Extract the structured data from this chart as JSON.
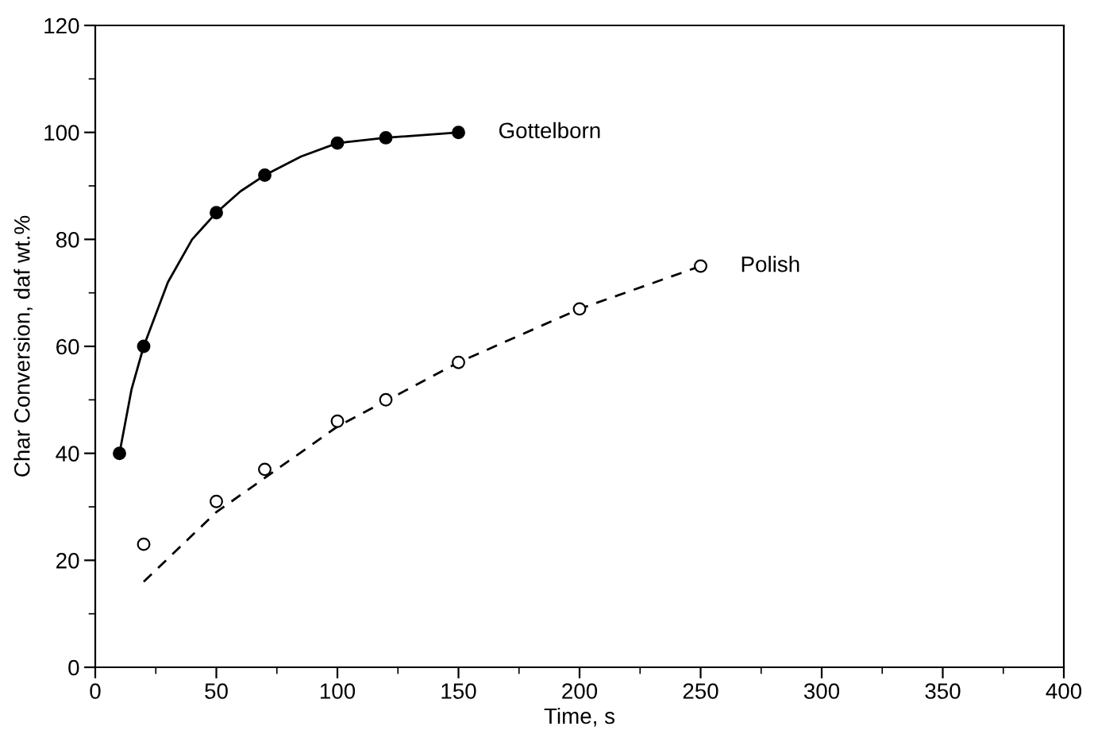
{
  "chart_data": {
    "type": "scatter",
    "xlabel": "Time, s",
    "ylabel": "Char Conversion, daf wt.%",
    "xlim": [
      0,
      400
    ],
    "xticks": [
      0,
      50,
      100,
      150,
      200,
      250,
      300,
      350,
      400
    ],
    "ylim": [
      0,
      120
    ],
    "yticks": [
      0,
      20,
      40,
      60,
      80,
      100,
      120
    ],
    "grid": false,
    "legend": false,
    "series": [
      {
        "type": "line",
        "color": "#000000",
        "line_style": "solid",
        "marker": "none",
        "x": [
          10,
          15,
          20,
          30,
          40,
          50,
          60,
          70,
          85,
          100,
          120,
          150
        ],
        "values": [
          40,
          52,
          60,
          72,
          80,
          85,
          89,
          92,
          95.5,
          98,
          99,
          100
        ]
      },
      {
        "type": "line",
        "color": "#000000",
        "line_style": "dashed",
        "marker": "none",
        "x": [
          20,
          50,
          100,
          150,
          200,
          250
        ],
        "values": [
          16,
          29,
          45,
          57,
          67,
          75
        ]
      },
      {
        "name": "Gottelborn",
        "color": "#000000",
        "marker": "circle",
        "x": [
          10,
          20,
          50,
          70,
          100,
          120,
          150
        ],
        "values": [
          40,
          60,
          85,
          92,
          98,
          99,
          100
        ]
      },
      {
        "name": "Polish",
        "color": "#000000",
        "marker": "circle",
        "x": [
          20,
          50,
          70,
          100,
          120,
          150,
          200,
          250
        ],
        "values": [
          23,
          31,
          37,
          46,
          50,
          57,
          67,
          75
        ]
      }
    ]
  }
}
